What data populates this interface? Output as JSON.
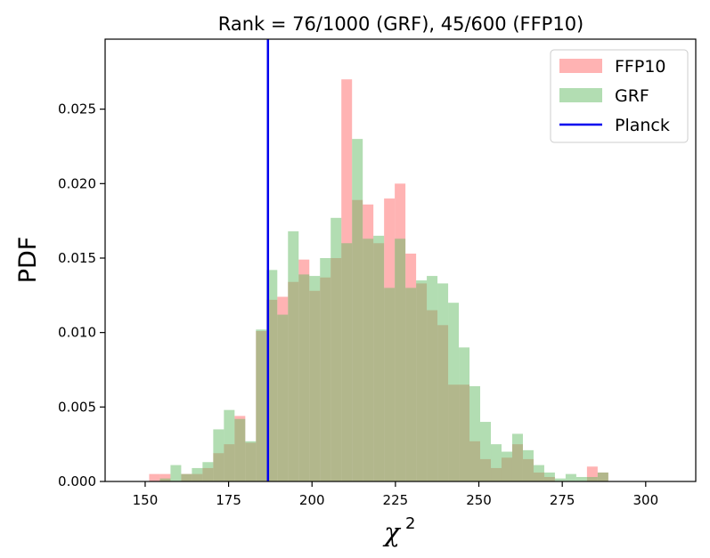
{
  "chart_data": {
    "type": "histogram",
    "title": "Rank = 76/1000 (GRF), 45/600 (FFP10)",
    "xlabel_base": "χ",
    "xlabel_sup": "2",
    "ylabel": "PDF",
    "xlim": [
      138,
      315
    ],
    "ylim": [
      0,
      0.0297
    ],
    "xticks": [
      150,
      175,
      200,
      225,
      250,
      275,
      300
    ],
    "yticks": [
      0.0,
      0.005,
      0.01,
      0.015,
      0.02,
      0.025
    ],
    "ytick_labels": [
      "0.000",
      "0.005",
      "0.010",
      "0.015",
      "0.020",
      "0.025"
    ],
    "bin_width": 3.2,
    "bin_edges_start": 144.8,
    "series": [
      {
        "name": "FFP10",
        "color": "#ff9999",
        "alpha": 0.75,
        "values": [
          0,
          0,
          0.0005,
          0.0005,
          0,
          0.0005,
          0.0005,
          0.0009,
          0.0019,
          0.0025,
          0.0044,
          0.0026,
          0.0101,
          0.0122,
          0.0124,
          0.0134,
          0.0149,
          0.0128,
          0.0137,
          0.015,
          0.027,
          0.0189,
          0.0186,
          0.016,
          0.019,
          0.02,
          0.0153,
          0.0133,
          0.0115,
          0.0105,
          0.0065,
          0.0065,
          0.0027,
          0.0015,
          0.0009,
          0.0016,
          0.0025,
          0.0015,
          0.0006,
          0.0003,
          0,
          0,
          0,
          0.001,
          0.0006,
          0,
          0,
          0
        ]
      },
      {
        "name": "GRF",
        "color": "#66bb66",
        "alpha": 0.5,
        "values": [
          0,
          0,
          0,
          0.0002,
          0.0011,
          0.0005,
          0.0009,
          0.0013,
          0.0035,
          0.0048,
          0.0042,
          0.0027,
          0.0102,
          0.0142,
          0.0112,
          0.0168,
          0.0139,
          0.0138,
          0.015,
          0.0177,
          0.016,
          0.023,
          0.0163,
          0.0165,
          0.013,
          0.0163,
          0.013,
          0.0135,
          0.0138,
          0.0133,
          0.012,
          0.009,
          0.0064,
          0.004,
          0.0025,
          0.002,
          0.0032,
          0.0021,
          0.0011,
          0.0006,
          0.0002,
          0.0005,
          0.0003,
          0.0003,
          0.0006,
          0,
          0,
          0
        ]
      }
    ],
    "vline": {
      "name": "Planck",
      "x": 186.8,
      "color": "#0000ee"
    },
    "legend": {
      "placement": "top-right",
      "entries": [
        {
          "label": "FFP10",
          "kind": "patch",
          "color": "#ff9999",
          "alpha": 0.75
        },
        {
          "label": "GRF",
          "kind": "patch",
          "color": "#66bb66",
          "alpha": 0.5
        },
        {
          "label": "Planck",
          "kind": "line",
          "color": "#0000ee"
        }
      ]
    },
    "grid": false
  }
}
